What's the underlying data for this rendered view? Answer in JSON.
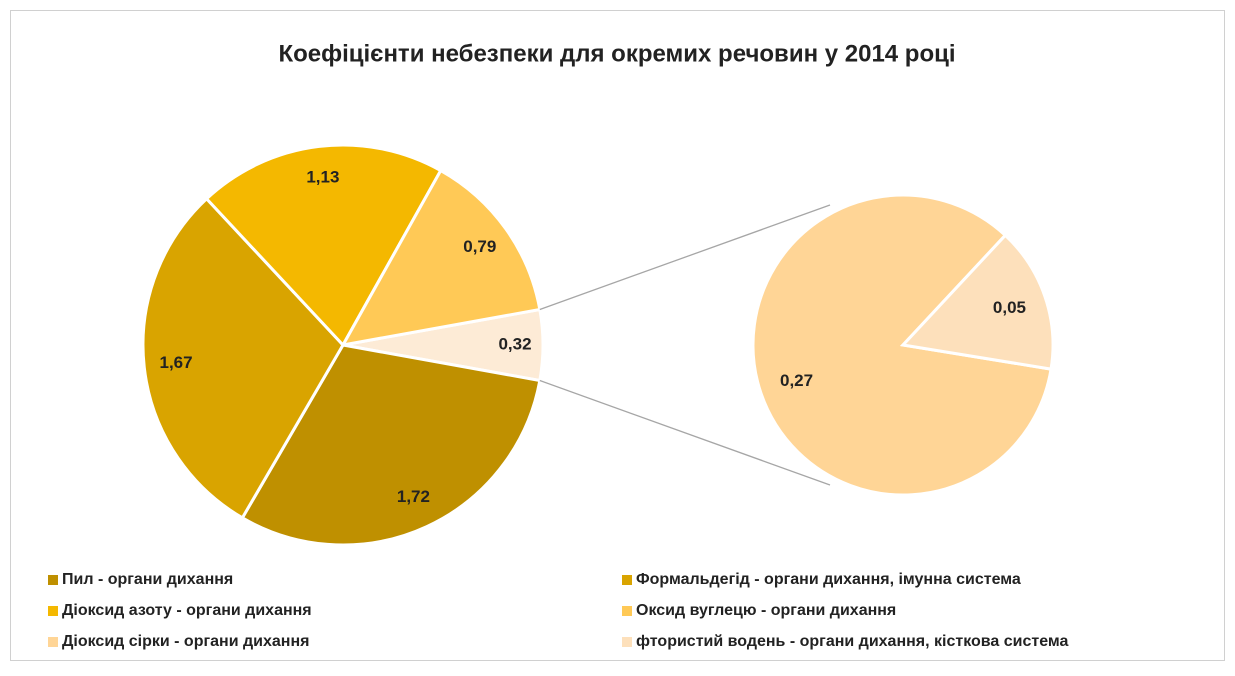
{
  "chart_data": {
    "type": "pie-of-pie",
    "title": "Коефіцієнти небезпеки для окремих речовин у 2014 році",
    "main": {
      "categories": [
        "Пил  - органи дихання",
        "Формальдегід  - органи дихання, імунна система",
        "Діоксид азоту  - органи дихання",
        "Оксид вуглецю  - органи дихання"
      ],
      "values": [
        1.72,
        1.67,
        1.13,
        0.79
      ],
      "value_labels": [
        "1,72",
        "1,67",
        "1,13",
        "0,79"
      ],
      "colors": [
        "#bf9000",
        "#d9a400",
        "#f4b800",
        "#ffc956"
      ]
    },
    "other": {
      "value": 0.32,
      "value_label": "0,32",
      "color": "#fdebd6"
    },
    "secondary": {
      "categories": [
        "Діоксид сірки  - органи дихання",
        "фтористий водень  - органи дихання, кісткова система"
      ],
      "values": [
        0.27,
        0.05
      ],
      "value_labels": [
        "0,27",
        "0,05"
      ],
      "colors": [
        "#ffd596",
        "#fde0bb"
      ]
    }
  }
}
